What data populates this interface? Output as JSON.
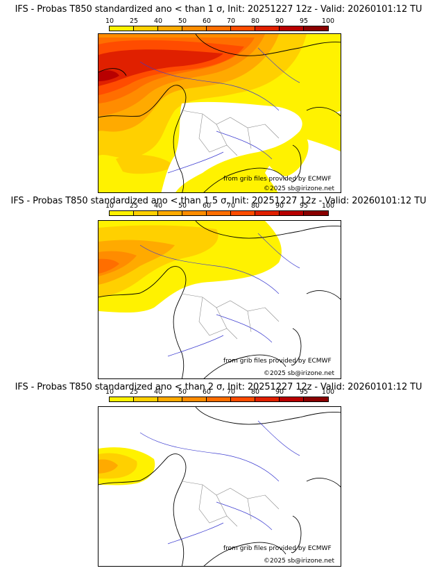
{
  "scale_colors": [
    "#fff200",
    "#ffd000",
    "#ffaa00",
    "#ff8c00",
    "#ff6e00",
    "#ff4c00",
    "#e02000",
    "#b80000",
    "#8a0000",
    "#500000"
  ],
  "scale_labels": [
    "10",
    "25",
    "40",
    "50",
    "60",
    "70",
    "80",
    "90",
    "95",
    "100"
  ],
  "panels": [
    {
      "title": "IFS - Probas T850  standardized ano < than 1 σ, Init: 20251227 12z - Valid: 20260101:12 TU",
      "credit_grib": "from grib files provided by ECMWF",
      "credit_site": "©2025 sb@irizone.net"
    },
    {
      "title": "IFS - Probas T850  standardized ano < than 1.5 σ, Init: 20251227 12z - Valid: 20260101:12 TU",
      "credit_grib": "from grib files provided by ECMWF",
      "credit_site": "©2025 sb@irizone.net"
    },
    {
      "title": "IFS - Probas T850  standardized ano < than 2 σ, Init: 20251227 12z - Valid: 20260101:12 TU",
      "credit_grib": "from grib files provided by ECMWF",
      "credit_site": "©2025 sb@irizone.net"
    }
  ]
}
